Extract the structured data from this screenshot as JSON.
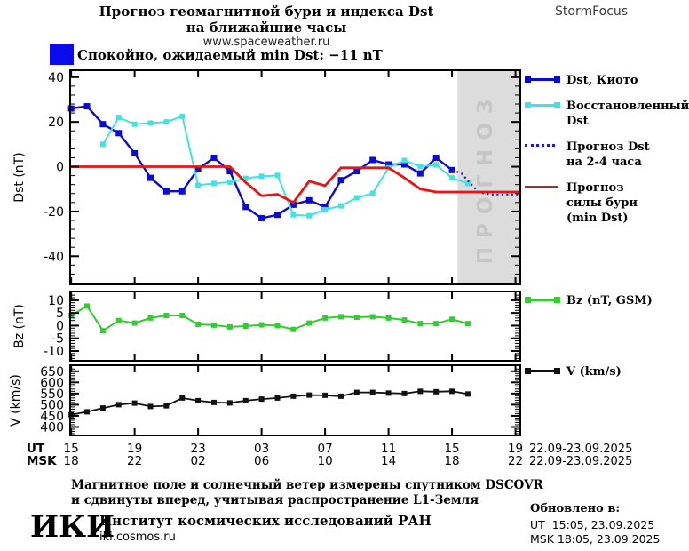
{
  "header": {
    "title_line1": "Прогноз геомагнитной бури и индекса Dst",
    "title_line2": "на ближайшие часы",
    "site": "www.spaceweather.ru",
    "brand": "StormFocus"
  },
  "banner": {
    "text": "Спокойно, ожидаемый min Dst: −11 nT",
    "box_color": "#0b0bee"
  },
  "forecast_band": {
    "label": "ПРОГНОЗ",
    "band_color": "#dcdcdc",
    "label_color": "#c6c6c6",
    "start_hour": 24.35
  },
  "xaxis": {
    "ut_label": "UT",
    "msk_label": "MSK",
    "ut_ticks": [
      "15",
      "19",
      "23",
      "03",
      "07",
      "11",
      "15",
      "19"
    ],
    "msk_ticks": [
      "18",
      "22",
      "02",
      "06",
      "10",
      "14",
      "18",
      "22"
    ],
    "ut_date": "22.09-23.09.2025",
    "msk_date": "22.09-23.09.2025"
  },
  "legend_dst": {
    "items": [
      {
        "lines": [
          "Dst, Киото"
        ],
        "color": "#0a0ad2",
        "style": "squares"
      },
      {
        "lines": [
          "Восстановленный",
          "Dst"
        ],
        "color": "#42e2e2",
        "style": "squares"
      },
      {
        "lines": [
          "Прогноз Dst",
          "на 2-4 часа"
        ],
        "color": "#1b1bd0",
        "style": "dotted"
      },
      {
        "lines": [
          "Прогноз",
          "силы бури",
          "(min Dst)"
        ],
        "color": "#ee1111",
        "style": "line"
      }
    ]
  },
  "legend_bz": {
    "items": [
      {
        "lines": [
          "Bz (nT, GSM)"
        ],
        "color": "#33cc33",
        "style": "squares"
      }
    ]
  },
  "legend_v": {
    "items": [
      {
        "lines": [
          "V (km/s)"
        ],
        "color": "#111111",
        "style": "squares"
      }
    ]
  },
  "footer": {
    "note_line1": "Магнитное поле и солнечный ветер измерены спутником DSCOVR",
    "note_line2": "и сдвинуты вперед, учитывая распространение L1-Земля",
    "logo": "ИКИ",
    "institute": "Институт космических исследований РАН",
    "institute_site": "iki.cosmos.ru",
    "updated_label": "Обновлено в:",
    "updated_ut": "UT  15:05, 23.09.2025",
    "updated_msk": "MSK 18:05, 23.09.2025"
  },
  "chart_data": [
    {
      "type": "line",
      "panel": "dst",
      "ylabel": "Dst (nT)",
      "ylim": [
        -53,
        43.5
      ],
      "yticks": [
        40,
        20,
        0,
        -20,
        -40
      ],
      "y_minor_step": 4,
      "xlim_hours": [
        -0.12,
        28.36
      ],
      "xticks_hours": [
        0,
        4,
        8,
        12,
        16,
        20,
        24,
        28
      ],
      "x_start_ut_hour": 15,
      "series": [
        {
          "name": "Dst, Киото",
          "color": "#0a0ad2",
          "style": "solid",
          "width": 2.4,
          "marker": 7,
          "start_hour": 0,
          "values": [
            26,
            27,
            19,
            15,
            6,
            -5,
            -11,
            -11,
            -1,
            4,
            -2,
            -18,
            -23,
            -21.5,
            -17,
            -15,
            -18,
            -6,
            -2,
            3,
            1,
            1,
            -3,
            4,
            -1.5
          ]
        },
        {
          "name": "Восстановленный Dst",
          "color": "#42e2e2",
          "style": "solid",
          "width": 2,
          "marker": 6,
          "start_hour": 2,
          "values": [
            10,
            22,
            19,
            19.5,
            20,
            22.5,
            -8.3,
            -7.5,
            -6.9,
            -5.2,
            -4.3,
            -3.9,
            -21.5,
            -21.9,
            -19.2,
            -17.5,
            -13.9,
            -11.9,
            -0.5,
            2.8,
            0.1,
            0.8,
            -5,
            -7.5
          ]
        },
        {
          "name": "Прогноз Dst на 2-4 часа",
          "color": "#1b1bd0",
          "style": "dotted",
          "width": 2.2,
          "marker": 0,
          "points": [
            [
              24,
              -1.5
            ],
            [
              24.6,
              -3
            ],
            [
              25.1,
              -7
            ],
            [
              25.7,
              -11.5
            ],
            [
              26.5,
              -12.4
            ],
            [
              28.36,
              -12.4
            ]
          ]
        },
        {
          "name": "Прогноз силы бури (min Dst)",
          "color": "#ee1111",
          "style": "solid",
          "width": 2.8,
          "marker": 0,
          "points": [
            [
              -0.12,
              0
            ],
            [
              10,
              0
            ],
            [
              11,
              -7
            ],
            [
              12,
              -13
            ],
            [
              13,
              -12.3
            ],
            [
              14,
              -16
            ],
            [
              15,
              -6.5
            ],
            [
              16,
              -8.5
            ],
            [
              17,
              -0.5
            ],
            [
              20,
              -0.5
            ],
            [
              21,
              -5
            ],
            [
              22,
              -10
            ],
            [
              23,
              -11.3
            ],
            [
              28.36,
              -11.3
            ]
          ]
        }
      ]
    },
    {
      "type": "line",
      "panel": "bz",
      "ylabel": "Bz (nT)",
      "ylim": [
        -14.2,
        13.8
      ],
      "yticks": [
        10,
        5,
        0,
        -5,
        -10
      ],
      "y_minor_step": 1,
      "xlim_hours": [
        -0.12,
        28.36
      ],
      "xticks_hours": [
        0,
        4,
        8,
        12,
        16,
        20,
        24,
        28
      ],
      "series": [
        {
          "name": "Bz (nT, GSM)",
          "color": "#33cc33",
          "style": "solid",
          "width": 2,
          "marker": 6,
          "start_hour": 0,
          "values": [
            4,
            7.7,
            -2,
            2,
            1,
            3,
            4,
            4,
            0.5,
            0.2,
            -0.5,
            -0.2,
            0.3,
            0,
            -1.5,
            1,
            3,
            3.5,
            3.3,
            3.5,
            3,
            2.2,
            0.8,
            0.8,
            2.5,
            0.8
          ]
        }
      ]
    },
    {
      "type": "line",
      "panel": "v",
      "ylabel": "V (km/s)",
      "ylim": [
        358,
        681
      ],
      "yticks": [
        650,
        600,
        550,
        500,
        450,
        400
      ],
      "y_minor_step": 10,
      "xlim_hours": [
        -0.12,
        28.36
      ],
      "xticks_hours": [
        0,
        4,
        8,
        12,
        16,
        20,
        24,
        28
      ],
      "series": [
        {
          "name": "V (km/s)",
          "color": "#111111",
          "style": "solid",
          "width": 1.8,
          "marker": 6,
          "start_hour": 0,
          "values": [
            455,
            468,
            485,
            500,
            507,
            492,
            495,
            530,
            518,
            510,
            508,
            518,
            525,
            530,
            538,
            543,
            542,
            538,
            555,
            555,
            552,
            550,
            560,
            558,
            560,
            548
          ]
        }
      ]
    }
  ]
}
